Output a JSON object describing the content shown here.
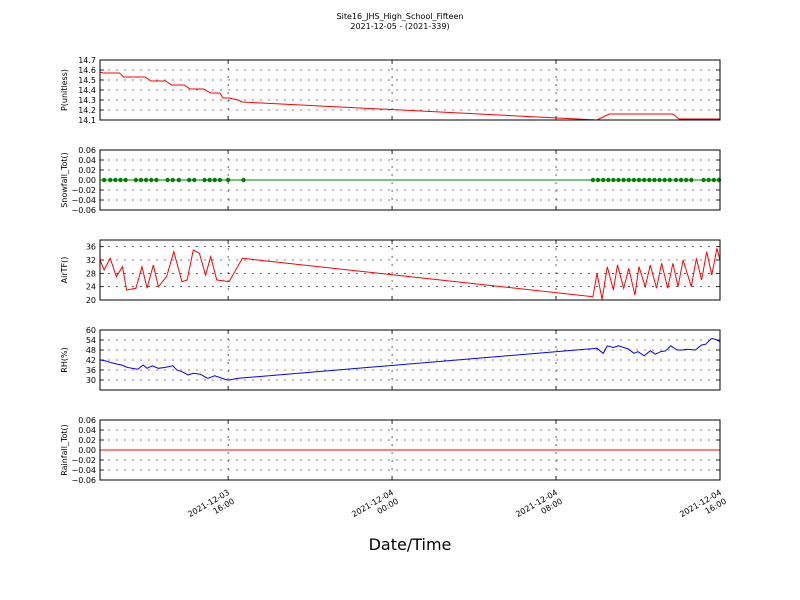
{
  "title": "Site16_JHS_High_School_Fifteen",
  "subtitle": "2021-12-05 - (2021-339)",
  "chart_data": {
    "type": "line",
    "xlabel": "Date/Time",
    "x_ticks": [
      {
        "t": 16,
        "line1": "2021-12-03",
        "line2": "16:00"
      },
      {
        "t": 24,
        "line1": "2021-12-04",
        "line2": "00:00"
      },
      {
        "t": 32,
        "line1": "2021-12-04",
        "line2": "08:00"
      },
      {
        "t": 40,
        "line1": "2021-12-04",
        "line2": "16:00"
      }
    ],
    "xlim": [
      9.75,
      40
    ],
    "grid": true,
    "panels": [
      {
        "ylabel": "P(unitless)",
        "ylim": [
          14.1,
          14.7
        ],
        "yticks": [
          "14.1",
          "14.2",
          "14.3",
          "14.4",
          "14.5",
          "14.6",
          "14.7"
        ],
        "series": [
          {
            "color": "#ff0000",
            "marker": false,
            "x": [
              9.75,
              9.9,
              10.7,
              10.9,
              11.95,
              12.25,
              12.95,
              13.25,
              13.85,
              14.15,
              14.8,
              15.15,
              15.6,
              15.75,
              16.05,
              16.5,
              16.7,
              34.0,
              34.6,
              37.7,
              38.0,
              40.0
            ],
            "y": [
              14.58,
              14.57,
              14.57,
              14.53,
              14.53,
              14.49,
              14.49,
              14.45,
              14.45,
              14.41,
              14.41,
              14.37,
              14.37,
              14.32,
              14.32,
              14.3,
              14.28,
              14.1,
              14.16,
              14.16,
              14.11,
              14.11
            ]
          }
        ]
      },
      {
        "ylabel": "Snowfall_Tot()",
        "ylim": [
          -0.06,
          0.06
        ],
        "yticks": [
          "−0.06",
          "−0.04",
          "−0.02",
          "0.00",
          "0.02",
          "0.04",
          "0.06"
        ],
        "series": [
          {
            "color": "#008000",
            "marker": true,
            "x": [
              9.75,
              40.0
            ],
            "y": [
              0,
              0
            ],
            "marker_x": [
              9.95,
              10.25,
              10.5,
              10.75,
              11.0,
              11.5,
              11.75,
              12.0,
              12.25,
              12.5,
              13.05,
              13.3,
              13.6,
              14.1,
              14.35,
              14.85,
              15.1,
              15.35,
              15.6,
              16.0,
              16.75,
              33.8,
              34.05,
              34.3,
              34.55,
              34.8,
              35.05,
              35.3,
              35.55,
              35.8,
              36.05,
              36.3,
              36.55,
              36.8,
              37.05,
              37.3,
              37.55,
              37.85,
              38.1,
              38.35,
              38.6,
              39.2,
              39.45,
              39.7,
              39.95
            ],
            "marker_y": 0
          }
        ]
      },
      {
        "ylabel": "AirTF()",
        "ylim": [
          20,
          38
        ],
        "yticks": [
          "20",
          "24",
          "28",
          "32",
          "36"
        ],
        "series": [
          {
            "color": "#ff0000",
            "marker": false,
            "x": [
              9.75,
              9.95,
              10.25,
              10.55,
              10.85,
              11.05,
              11.5,
              11.8,
              12.05,
              12.35,
              12.6,
              13.0,
              13.35,
              13.75,
              14.0,
              14.3,
              14.6,
              14.9,
              15.15,
              15.45,
              15.75,
              16.05,
              16.7,
              33.8,
              34.0,
              34.25,
              34.5,
              34.8,
              35.0,
              35.3,
              35.55,
              35.85,
              36.05,
              36.35,
              36.6,
              36.9,
              37.15,
              37.45,
              37.7,
              37.95,
              38.2,
              38.6,
              38.85,
              39.1,
              39.35,
              39.6,
              39.85,
              40.0
            ],
            "y": [
              32,
              29,
              32.5,
              27,
              30,
              23,
              23.5,
              30,
              23.5,
              30.5,
              24,
              27,
              34.5,
              25.5,
              26,
              35,
              34,
              27.5,
              33,
              26,
              25.8,
              25.5,
              32.5,
              21,
              28,
              20.2,
              30,
              23,
              30.5,
              23.5,
              29.5,
              21.5,
              30,
              24,
              30.5,
              23.5,
              31,
              23.5,
              31,
              24,
              32,
              24,
              32.5,
              26,
              34.5,
              27.5,
              35.5,
              32
            ]
          }
        ]
      },
      {
        "ylabel": "RH(%)",
        "ylim": [
          24,
          60
        ],
        "yticks": [
          "30",
          "36",
          "42",
          "48",
          "54",
          "60"
        ],
        "series": [
          {
            "color": "#0000ff",
            "marker": false,
            "x": [
              9.75,
              10.0,
              10.4,
              10.8,
              11.1,
              11.6,
              11.85,
              12.05,
              12.3,
              12.6,
              12.9,
              13.3,
              13.5,
              13.75,
              14.05,
              14.3,
              14.65,
              15.0,
              15.35,
              15.6,
              15.95,
              16.05,
              16.5,
              34.0,
              34.3,
              34.5,
              34.8,
              35.05,
              35.3,
              35.55,
              35.8,
              36.0,
              36.3,
              36.6,
              36.85,
              37.1,
              37.35,
              37.6,
              37.9,
              38.15,
              38.4,
              38.8,
              39.1,
              39.3,
              39.6,
              39.85,
              40.0
            ],
            "y": [
              42,
              41.5,
              40,
              39,
              37.5,
              36.5,
              39,
              37,
              38.5,
              37,
              37.5,
              38.5,
              36,
              35,
              33,
              34,
              33.5,
              31,
              32.5,
              31.5,
              30,
              30,
              31,
              49,
              46,
              50.5,
              49.5,
              50.5,
              49.5,
              48.5,
              46,
              47,
              44.5,
              47.5,
              45.5,
              47,
              47.5,
              50.5,
              48,
              48,
              48.5,
              48,
              51,
              51.5,
              55,
              54,
              53
            ]
          }
        ]
      },
      {
        "ylabel": "Rainfall_Tot()",
        "ylim": [
          -0.06,
          0.06
        ],
        "yticks": [
          "−0.06",
          "−0.04",
          "−0.02",
          "0.00",
          "0.02",
          "0.04",
          "0.06"
        ],
        "series": [
          {
            "color": "#ff0000",
            "marker": false,
            "x": [
              9.75,
              40.0
            ],
            "y": [
              0,
              0
            ]
          }
        ]
      }
    ]
  }
}
